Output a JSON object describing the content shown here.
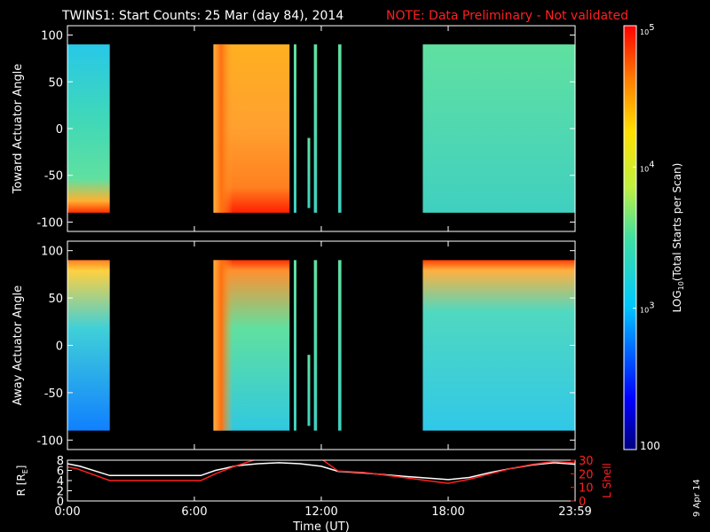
{
  "title": {
    "main": "TWINS1: Start Counts: 25 Mar (day  84), 2014",
    "note": "NOTE: Data Preliminary - Not validated"
  },
  "footer_date": "9 Apr 14",
  "colors": {
    "note": "#ff2020",
    "r_line": "#ffffff",
    "l_line": "#ff2020",
    "background": "#000000"
  },
  "chart_data": [
    {
      "type": "heatmap",
      "ylabel": "Toward Actuator Angle",
      "ylim": [
        -110,
        110
      ],
      "yticks": [
        "100",
        "50",
        "0",
        "-50",
        "-100"
      ],
      "xlim_hours": [
        0,
        24
      ],
      "data_blocks_hours": [
        [
          0.0,
          2.0
        ],
        [
          6.9,
          10.5
        ],
        [
          10.7,
          10.75
        ],
        [
          11.35,
          11.42
        ],
        [
          11.65,
          11.8
        ],
        [
          12.8,
          12.95
        ],
        [
          16.8,
          24.0
        ]
      ]
    },
    {
      "type": "heatmap",
      "ylabel": "Away Actuator Angle",
      "ylim": [
        -110,
        110
      ],
      "yticks": [
        "100",
        "50",
        "0",
        "-50",
        "-100"
      ],
      "xlim_hours": [
        0,
        24
      ],
      "data_blocks_hours": [
        [
          0.0,
          2.0
        ],
        [
          6.9,
          10.5
        ],
        [
          10.7,
          10.75
        ],
        [
          11.35,
          11.42
        ],
        [
          11.65,
          11.8
        ],
        [
          12.8,
          12.95
        ],
        [
          16.8,
          24.0
        ]
      ]
    },
    {
      "type": "line",
      "xlabel": "Time (UT)",
      "xticks": [
        "0:00",
        "6:00",
        "12:00",
        "18:00",
        "23:59"
      ],
      "x_hours": [
        0,
        6,
        12,
        18,
        24
      ],
      "ylabel_left": "R [R",
      "ylabel_left_sub": "E",
      "ylabel_left_tail": "]",
      "yticks_left": [
        "8",
        "6",
        "4",
        "2",
        "0"
      ],
      "ylim_left": [
        0,
        8
      ],
      "ylabel_right": "L Shell",
      "yticks_right": [
        "30",
        "20",
        "10",
        "0"
      ],
      "ylim_right": [
        0,
        30
      ],
      "series": [
        {
          "axis": "left",
          "x": [
            0,
            0.6,
            2,
            5,
            6.3,
            7,
            8,
            9,
            10,
            11,
            12,
            12.8,
            14,
            16,
            18,
            19,
            20,
            21,
            22,
            23,
            24
          ],
          "values": [
            7.3,
            6.8,
            5.0,
            5.0,
            5.0,
            6.0,
            6.9,
            7.3,
            7.5,
            7.3,
            6.8,
            5.8,
            5.5,
            4.8,
            4.2,
            4.6,
            5.6,
            6.4,
            7.1,
            7.5,
            7.2
          ]
        },
        {
          "axis": "right",
          "x": [
            0,
            0.4,
            2,
            5,
            6.3,
            7,
            8,
            9,
            9.5,
            10.2,
            12,
            12.8,
            14,
            16,
            18,
            19,
            20,
            21,
            22,
            23,
            24
          ],
          "values": [
            25,
            24,
            15,
            15,
            15,
            20,
            26,
            31,
            33,
            31,
            31,
            22,
            21,
            17,
            13,
            16,
            20,
            24,
            27,
            29,
            28
          ]
        }
      ]
    },
    {
      "type": "heatmap-colorbar",
      "scale": "log",
      "range": [
        100,
        100000
      ],
      "label": "LOG",
      "label_sub": "10",
      "label_tail": "(Total Starts per Scan)",
      "ticks": [
        {
          "value": 100000,
          "base": "10",
          "exp": "5"
        },
        {
          "value": 10000,
          "base": "10",
          "exp": "4"
        },
        {
          "value": 1000,
          "base": "10",
          "exp": "3"
        },
        {
          "value": 100,
          "base": "100",
          "exp": ""
        }
      ]
    }
  ]
}
